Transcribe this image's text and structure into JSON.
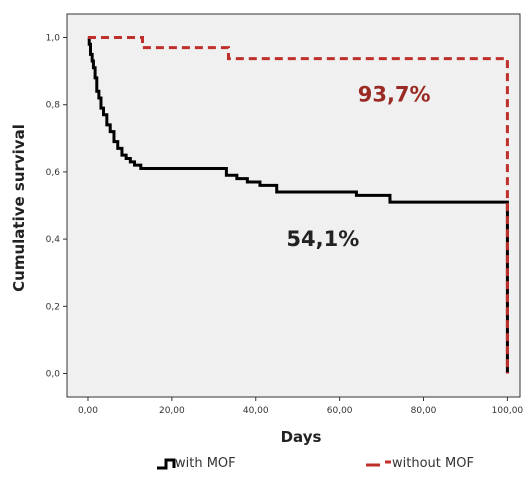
{
  "chart_data": {
    "type": "line",
    "title": "",
    "xlabel": "Days",
    "ylabel": "Cumulative survival",
    "xlim": [
      -5,
      103
    ],
    "ylim": [
      -0.07,
      1.07
    ],
    "x_ticks": [
      "0,00",
      "20,00",
      "40,00",
      "60,00",
      "80,00",
      "100,00"
    ],
    "y_ticks": [
      "0,0",
      "0,2",
      "0,4",
      "0,6",
      "0,8",
      "1,0"
    ],
    "grid": false,
    "legend_position": "bottom",
    "step": true,
    "series": [
      {
        "name": "with MOF",
        "color": "#000000",
        "style": "solid",
        "x": [
          0,
          0.3,
          0.6,
          1.0,
          1.3,
          1.7,
          2.1,
          2.6,
          3.1,
          3.7,
          4.5,
          5.3,
          6.2,
          7.1,
          8.1,
          9.1,
          10.1,
          11.1,
          12.6,
          14.0,
          33.0,
          35.5,
          38.0,
          41.0,
          45.0,
          64.0,
          72.0,
          99.8,
          100.0
        ],
        "y": [
          1.0,
          0.98,
          0.95,
          0.93,
          0.91,
          0.88,
          0.84,
          0.82,
          0.79,
          0.77,
          0.74,
          0.72,
          0.69,
          0.67,
          0.65,
          0.64,
          0.63,
          0.62,
          0.61,
          0.61,
          0.59,
          0.58,
          0.57,
          0.56,
          0.54,
          0.53,
          0.51,
          0.51,
          0.0
        ]
      },
      {
        "name": "without MOF",
        "color": "#c0302b",
        "style": "dashed",
        "x": [
          0,
          12.3,
          13.0,
          33.5,
          99.3,
          100.0
        ],
        "y": [
          1.0,
          1.0,
          0.97,
          0.937,
          0.937,
          0.0
        ]
      }
    ],
    "annotations": [
      {
        "text": "93,7%",
        "x": 73,
        "y": 0.81,
        "color": "#9a2a24"
      },
      {
        "text": "54,1%",
        "x": 56,
        "y": 0.38,
        "color": "#222222"
      }
    ]
  }
}
